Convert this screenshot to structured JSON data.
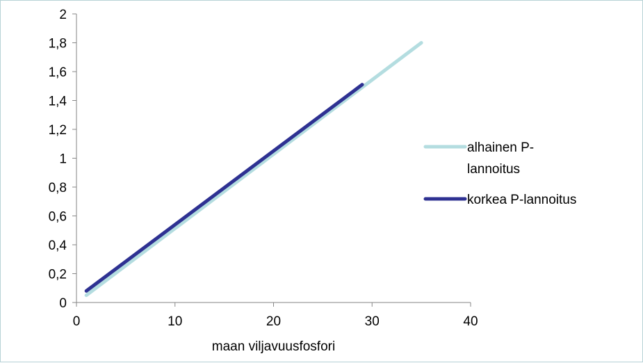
{
  "chart_data": {
    "type": "line",
    "title": "",
    "xlabel": "maan viljavuusfosfori",
    "ylabel": "",
    "xlim": [
      0,
      40
    ],
    "ylim": [
      0,
      2
    ],
    "x_ticks": [
      0,
      10,
      20,
      30,
      40
    ],
    "x_tick_labels": [
      "0",
      "10",
      "20",
      "30",
      "40"
    ],
    "y_ticks": [
      0,
      0.2,
      0.4,
      0.6,
      0.8,
      1,
      1.2,
      1.4,
      1.6,
      1.8,
      2
    ],
    "y_tick_labels": [
      "0",
      "0,2",
      "0,4",
      "0,6",
      "0,8",
      "1",
      "1,2",
      "1,4",
      "1,6",
      "1,8",
      "2"
    ],
    "grid": false,
    "legend_position": "right",
    "series": [
      {
        "name_lines": [
          "alhainen P-",
          "lannoitus"
        ],
        "color": "#b4dde0",
        "x": [
          1,
          35
        ],
        "y": [
          0.05,
          1.8
        ]
      },
      {
        "name_lines": [
          "korkea P-lannoitus"
        ],
        "color": "#2e3192",
        "x": [
          1,
          29
        ],
        "y": [
          0.08,
          1.51
        ]
      }
    ]
  }
}
